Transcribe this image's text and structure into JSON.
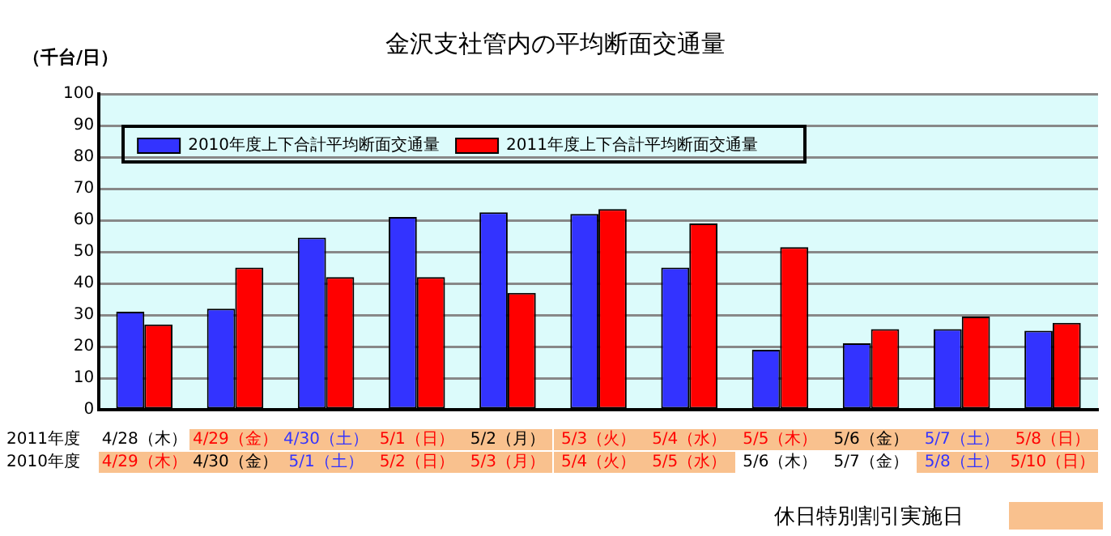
{
  "chart_data": {
    "type": "bar",
    "title": "金沢支社管内の平均断面交通量",
    "ylabel": "（千台/日）",
    "categories": [
      "4/28（木）",
      "4/29（金）",
      "4/30（土）",
      "5/1（日）",
      "5/2（月）",
      "5/3（火）",
      "5/4（水）",
      "5/5（木）",
      "5/6（金）",
      "5/7（土）",
      "5/8（日）"
    ],
    "series": [
      {
        "name": "2010年度上下合計平均断面交通量",
        "color": "#3333ff",
        "values": [
          31,
          32,
          54.5,
          61,
          62.5,
          62,
          45,
          19,
          21,
          25.5,
          25
        ]
      },
      {
        "name": "2011年度上下合計平均断面交通量",
        "color": "#ff0000",
        "values": [
          27,
          45,
          42,
          42,
          37,
          63.5,
          59,
          51.5,
          25.5,
          29.5,
          27.5
        ]
      }
    ],
    "ylim": [
      0,
      100
    ],
    "yticks": [
      0,
      10,
      20,
      30,
      40,
      50,
      60,
      70,
      80,
      90,
      100
    ],
    "grid": "y",
    "legend": "top left",
    "annotations": [
      "2011年度",
      "2010年度",
      "4/29（木）",
      "4/30（金）",
      "5/1（土）",
      "5/2（日）",
      "5/3（月）",
      "5/4（火）",
      "5/5（水）",
      "5/6（木）",
      "5/7（金）",
      "5/8（土）",
      "5/10（日）",
      "休日特別割引実施日"
    ]
  }
}
